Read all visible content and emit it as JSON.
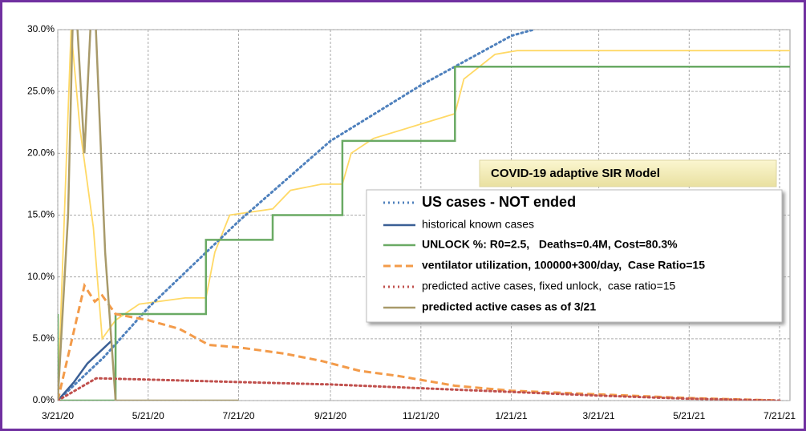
{
  "chart_data": {
    "type": "line",
    "title": "COVID-19 adaptive SIR Model",
    "xlim": [
      "2020-03-21",
      "2021-07-28"
    ],
    "xticks": [
      {
        "value": "2020-03-21",
        "label": "3/21/20"
      },
      {
        "value": "2020-05-21",
        "label": "5/21/20"
      },
      {
        "value": "2020-07-21",
        "label": "7/21/20"
      },
      {
        "value": "2020-09-21",
        "label": "9/21/20"
      },
      {
        "value": "2020-11-21",
        "label": "11/21/20"
      },
      {
        "value": "2021-01-21",
        "label": "1/21/21"
      },
      {
        "value": "2021-03-21",
        "label": "3/21/21"
      },
      {
        "value": "2021-05-21",
        "label": "5/21/21"
      },
      {
        "value": "2021-07-21",
        "label": "7/21/21"
      }
    ],
    "ylim": [
      0,
      30
    ],
    "yticks": [
      {
        "value": 0,
        "label": "0.0%"
      },
      {
        "value": 5,
        "label": "5.0%"
      },
      {
        "value": 10,
        "label": "10.0%"
      },
      {
        "value": 15,
        "label": "15.0%"
      },
      {
        "value": 20,
        "label": "20.0%"
      },
      {
        "value": 25,
        "label": "25.0%"
      },
      {
        "value": 30,
        "label": "30.0%"
      }
    ],
    "grid": true,
    "series": [
      {
        "color": "#ffd966",
        "x": [
          "2020-03-21",
          "2020-03-30",
          "2020-04-05",
          "2020-04-14",
          "2020-04-20",
          "2020-04-29",
          "2020-05-15",
          "2020-06-15",
          "2020-06-29",
          "2020-07-05",
          "2020-07-15",
          "2020-08-13",
          "2020-08-25",
          "2020-09-15",
          "2020-09-29",
          "2020-10-05",
          "2020-10-20",
          "2020-12-14",
          "2020-12-20",
          "2021-01-10",
          "2021-01-25",
          "2021-07-28"
        ],
        "values": [
          0,
          30,
          22,
          14,
          5,
          6.5,
          7.8,
          8.3,
          8.3,
          12,
          15,
          15.5,
          17,
          17.5,
          17.5,
          20,
          21.2,
          23.2,
          26,
          28,
          28.3,
          28.3
        ]
      },
      {
        "name": "US cases - NOT ended",
        "color": "#4f81bd",
        "style": "dotted",
        "x": [
          "2020-03-21",
          "2020-04-21",
          "2020-05-21",
          "2020-07-21",
          "2020-09-21",
          "2020-11-21",
          "2021-01-21",
          "2021-02-05"
        ],
        "values": [
          0,
          3.5,
          7.5,
          14.5,
          21,
          25.5,
          29.5,
          30
        ]
      },
      {
        "name": "historical known cases",
        "color": "#3a5f95",
        "style": "solid",
        "x": [
          "2020-03-21",
          "2020-04-01",
          "2020-04-10",
          "2020-04-26"
        ],
        "values": [
          0,
          1.5,
          3,
          4.8
        ]
      },
      {
        "name": "UNLOCK %: R0=2.5,   Deaths=0.4M, Cost=80.3%",
        "color": "#6aaa64",
        "style": "solid",
        "x": [
          "2020-03-21",
          "2020-03-21",
          "2020-04-29",
          "2020-04-29",
          "2020-06-29",
          "2020-06-29",
          "2020-08-13",
          "2020-08-13",
          "2020-09-29",
          "2020-09-29",
          "2020-12-14",
          "2020-12-14",
          "2021-07-28"
        ],
        "values": [
          7,
          0,
          0,
          7,
          7,
          13,
          13,
          15,
          15,
          21,
          21,
          27,
          27
        ]
      },
      {
        "name": "ventilator utilization, 100000+300/day,  Case Ratio=15",
        "color": "#f39b4a",
        "style": "dashed",
        "x": [
          "2020-03-21",
          "2020-04-08",
          "2020-04-15",
          "2020-04-20",
          "2020-04-29",
          "2020-05-21",
          "2020-06-11",
          "2020-07-01",
          "2020-07-21",
          "2020-08-21",
          "2020-09-15",
          "2020-10-11",
          "2020-11-05",
          "2020-12-14",
          "2021-01-21",
          "2021-03-21",
          "2021-05-21",
          "2021-07-21"
        ],
        "values": [
          0,
          9.3,
          8,
          8.5,
          7,
          6.5,
          5.8,
          4.5,
          4.3,
          3.8,
          3.2,
          2.4,
          2,
          1.2,
          0.8,
          0.5,
          0.2,
          0
        ]
      },
      {
        "name": "predicted active cases, fixed unlock,  case ratio=15",
        "color": "#c0504d",
        "style": "dotted",
        "x": [
          "2020-03-21",
          "2020-04-16",
          "2020-05-21",
          "2020-07-21",
          "2020-09-21",
          "2020-11-21",
          "2021-01-21",
          "2021-03-21",
          "2021-05-21",
          "2021-07-21"
        ],
        "values": [
          0,
          1.8,
          1.7,
          1.5,
          1.3,
          1,
          0.7,
          0.4,
          0.15,
          0
        ]
      },
      {
        "name": "predicted active cases as of 3/21",
        "color": "#a89a6a",
        "style": "solid",
        "x": [
          "2020-03-21",
          "2020-03-28",
          "2020-04-01",
          "2020-04-08",
          "2020-04-14",
          "2020-04-22",
          "2020-04-29",
          "2020-07-21"
        ],
        "values": [
          0,
          15,
          35,
          20,
          35,
          12,
          0,
          0
        ]
      }
    ]
  }
}
